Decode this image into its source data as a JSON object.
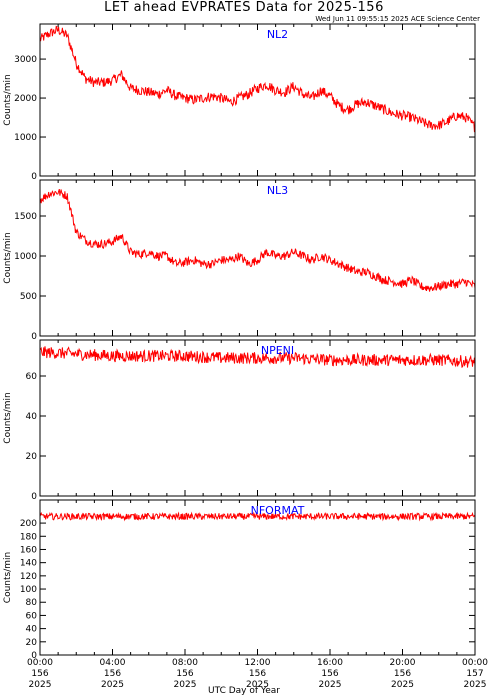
{
  "title": "LET ahead EVPRATES Data for 2025-156",
  "timestamp": "Wed Jun 11 09:55:15 2025 ACE Science Center",
  "xlabel": "UTC Day of Year",
  "colors": {
    "series": "#ff0000",
    "panel_title": "#0000ff",
    "axis": "#000000"
  },
  "chart_data": [
    {
      "type": "line",
      "title": "NL2",
      "ylabel": "Counts/min",
      "ylim": [
        0,
        3900
      ],
      "yticks": [
        0,
        1000,
        2000,
        3000
      ],
      "xlim": [
        0,
        24
      ],
      "x": [
        0,
        0.5,
        1,
        1.5,
        2,
        2.5,
        3,
        3.5,
        4,
        4.5,
        5,
        5.5,
        6,
        6.5,
        7,
        7.5,
        8,
        8.5,
        9,
        9.5,
        10,
        10.5,
        11,
        11.5,
        12,
        12.5,
        13,
        13.5,
        14,
        14.5,
        15,
        15.5,
        16,
        16.5,
        17,
        17.5,
        18,
        18.5,
        19,
        19.5,
        20,
        20.5,
        21,
        21.5,
        22,
        22.5,
        23,
        23.5,
        24
      ],
      "y": [
        3500,
        3650,
        3750,
        3600,
        2900,
        2500,
        2400,
        2400,
        2450,
        2600,
        2250,
        2200,
        2150,
        2100,
        2200,
        2050,
        2000,
        1950,
        2000,
        2050,
        2000,
        1900,
        2000,
        2100,
        2250,
        2350,
        2200,
        2150,
        2300,
        2100,
        2000,
        2200,
        2050,
        1800,
        1700,
        1850,
        1900,
        1800,
        1700,
        1600,
        1550,
        1500,
        1400,
        1300,
        1300,
        1400,
        1550,
        1500,
        1250
      ],
      "noise": 130
    },
    {
      "type": "line",
      "title": "NL3",
      "ylabel": "Counts/min",
      "ylim": [
        0,
        1950
      ],
      "yticks": [
        0,
        500,
        1000,
        1500
      ],
      "xlim": [
        0,
        24
      ],
      "x": [
        0,
        0.5,
        1,
        1.5,
        2,
        2.5,
        3,
        3.5,
        4,
        4.5,
        5,
        5.5,
        6,
        6.5,
        7,
        7.5,
        8,
        8.5,
        9,
        9.5,
        10,
        10.5,
        11,
        11.5,
        12,
        12.5,
        13,
        13.5,
        14,
        14.5,
        15,
        15.5,
        16,
        16.5,
        17,
        17.5,
        18,
        18.5,
        19,
        19.5,
        20,
        20.5,
        21,
        21.5,
        22,
        22.5,
        23,
        23.5,
        24
      ],
      "y": [
        1700,
        1780,
        1800,
        1750,
        1300,
        1200,
        1150,
        1150,
        1180,
        1250,
        1050,
        1020,
        1050,
        1000,
        1000,
        900,
        920,
        950,
        900,
        900,
        950,
        950,
        1000,
        900,
        950,
        1050,
        1000,
        1000,
        1050,
        1000,
        950,
        1000,
        950,
        900,
        850,
        800,
        800,
        750,
        700,
        680,
        650,
        700,
        620,
        600,
        620,
        650,
        650,
        680,
        620
      ],
      "noise": 55
    },
    {
      "type": "line",
      "title": "NPENI",
      "ylabel": "Counts/min",
      "ylim": [
        0,
        78
      ],
      "yticks": [
        0,
        20,
        40,
        60
      ],
      "xlim": [
        0,
        24
      ],
      "x": [
        0,
        2,
        4,
        6,
        8,
        10,
        12,
        14,
        16,
        18,
        20,
        22,
        24
      ],
      "y": [
        72,
        71,
        70,
        70,
        70,
        69,
        69,
        69,
        68,
        68,
        68,
        68,
        67
      ],
      "noise": 3
    },
    {
      "type": "line",
      "title": "NFORMAT",
      "ylabel": "Counts/min",
      "ylim": [
        0,
        235
      ],
      "yticks": [
        0,
        20,
        40,
        60,
        80,
        100,
        120,
        140,
        160,
        180,
        200
      ],
      "xlim": [
        0,
        24
      ],
      "x": [
        0,
        2,
        4,
        6,
        8,
        10,
        12,
        14,
        16,
        18,
        20,
        22,
        24
      ],
      "y": [
        210,
        210,
        210,
        210,
        210,
        210,
        210,
        210,
        210,
        210,
        210,
        210,
        210
      ],
      "noise": 5
    }
  ],
  "x_ticks": [
    {
      "time": "00:00",
      "doy": "156",
      "year": "2025"
    },
    {
      "time": "04:00",
      "doy": "156",
      "year": "2025"
    },
    {
      "time": "08:00",
      "doy": "156",
      "year": "2025"
    },
    {
      "time": "12:00",
      "doy": "156",
      "year": "2025"
    },
    {
      "time": "16:00",
      "doy": "156",
      "year": "2025"
    },
    {
      "time": "20:00",
      "doy": "156",
      "year": "2025"
    },
    {
      "time": "00:00",
      "doy": "157",
      "year": "2025"
    }
  ]
}
